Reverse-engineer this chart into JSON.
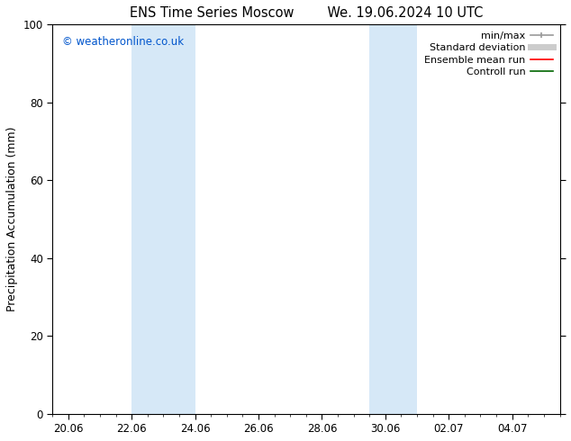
{
  "title_left": "ENS Time Series Moscow",
  "title_right": "We. 19.06.2024 10 UTC",
  "ylabel": "Precipitation Accumulation (mm)",
  "watermark": "© weatheronline.co.uk",
  "watermark_color": "#0055cc",
  "ylim": [
    0,
    100
  ],
  "yticks": [
    0,
    20,
    40,
    60,
    80,
    100
  ],
  "x_tick_labels": [
    "20.06",
    "22.06",
    "24.06",
    "26.06",
    "28.06",
    "30.06",
    "02.07",
    "04.07"
  ],
  "x_tick_positions": [
    0,
    2,
    4,
    6,
    8,
    10,
    12,
    14
  ],
  "x_minor_step": 0.5,
  "x_min": -0.5,
  "x_max": 15.5,
  "shaded_regions": [
    {
      "x_start": 2.0,
      "x_end": 4.0,
      "color": "#d6e8f7"
    },
    {
      "x_start": 9.5,
      "x_end": 11.0,
      "color": "#d6e8f7"
    }
  ],
  "legend_entries": [
    {
      "label": "min/max",
      "color": "#999999",
      "lw": 1.2
    },
    {
      "label": "Standard deviation",
      "color": "#cccccc",
      "lw": 5
    },
    {
      "label": "Ensemble mean run",
      "color": "#ff0000",
      "lw": 1.2
    },
    {
      "label": "Controll run",
      "color": "#006600",
      "lw": 1.2
    }
  ],
  "bg_color": "#ffffff",
  "plot_bg_color": "#ffffff",
  "tick_label_fontsize": 8.5,
  "axis_label_fontsize": 9,
  "title_fontsize": 10.5,
  "watermark_fontsize": 8.5,
  "legend_fontsize": 8
}
